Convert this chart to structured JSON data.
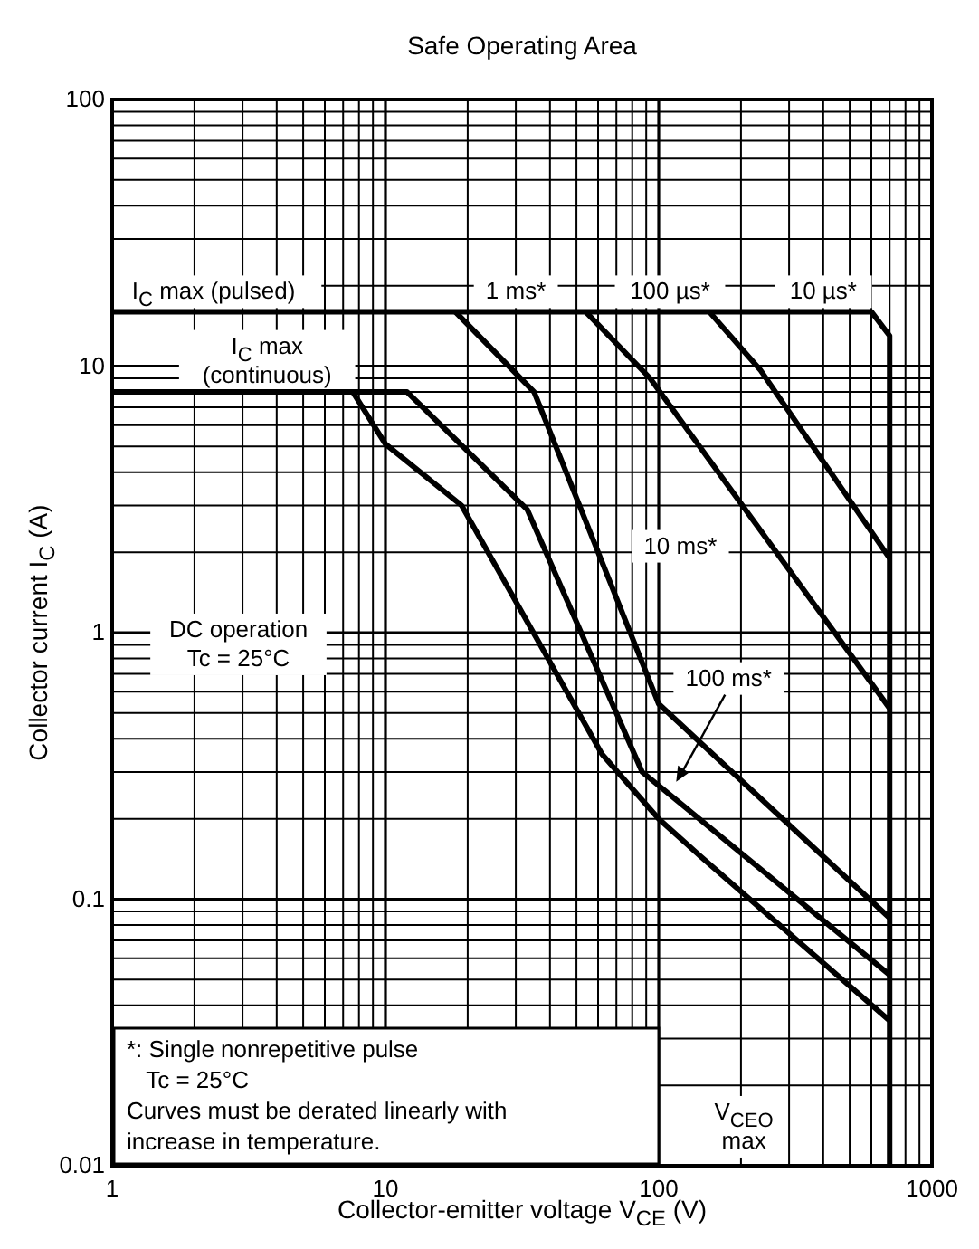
{
  "chart_data": {
    "type": "line",
    "title": "Safe Operating Area",
    "xlabel": "Collector-emitter voltage  V$_{CE}$  (V)",
    "ylabel": "Collector current  I$_{C}$  (A)",
    "log": "xy",
    "grid": true,
    "xlim": [
      1,
      1000
    ],
    "ylim": [
      0.01,
      100
    ],
    "xticks": [
      1,
      10,
      100,
      1000
    ],
    "yticks": [
      0.01,
      0.1,
      1,
      10,
      100
    ],
    "series": [
      {
        "color": "#000000",
        "x": [
          1,
          600,
          700,
          700
        ],
        "values": [
          16,
          16,
          13,
          0.01
        ]
      },
      {
        "color": "#000000",
        "x": [
          1,
          7.6,
          10,
          19,
          62,
          100,
          142,
          700
        ],
        "values": [
          8,
          8,
          5.1,
          3.0,
          0.35,
          0.2,
          0.145,
          0.035
        ]
      },
      {
        "color": "#000000",
        "x": [
          1,
          12,
          33,
          87,
          700
        ],
        "values": [
          8,
          8,
          2.9,
          0.3,
          0.052
        ]
      },
      {
        "color": "#000000",
        "x": [
          18,
          35,
          100,
          700
        ],
        "values": [
          16,
          8,
          0.54,
          0.085
        ]
      },
      {
        "color": "#000000",
        "x": [
          54,
          93,
          700
        ],
        "values": [
          16,
          9,
          0.52
        ]
      },
      {
        "color": "#000000",
        "x": [
          153,
          235,
          700
        ],
        "values": [
          16,
          9.7,
          1.9
        ]
      }
    ],
    "annotations": [
      {
        "text": "I$_{C}$ max (pulsed)",
        "x": 2.35,
        "y": 16
      },
      {
        "text": "1 ms*",
        "x": 30,
        "y": 16
      },
      {
        "text": "100 µs*",
        "x": 110,
        "y": 16
      },
      {
        "text": "10 µs*",
        "x": 400,
        "y": 16
      },
      "I$_{C}$ max\n(continuous)",
      "10 ms*",
      "100 ms*",
      "DC operation\nTc = 25°C",
      {
        "text": "V$_{CEO}$\nmax",
        "x": 205,
        "y": 0.014
      },
      "*: Single nonrepetitive pulse\n   Tc = 25°C\nCurves must be derated linearly with\nincrease in temperature."
    ]
  }
}
